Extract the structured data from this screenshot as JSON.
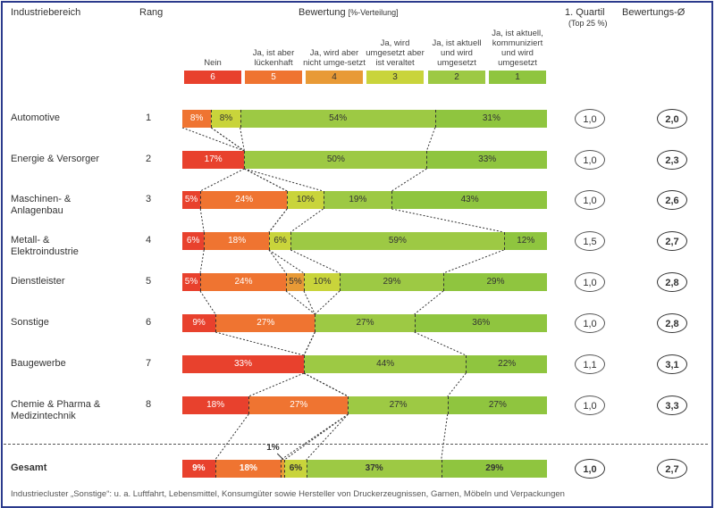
{
  "header": {
    "industry": "Industriebereich",
    "rank": "Rang",
    "rating": "Bewertung",
    "rating_unit": "[%-Verteilung]",
    "quartile": "1. Quartil",
    "quartile_sub": "(Top 25 %)",
    "avg": "Bewertungs-Ø"
  },
  "chart_data": {
    "type": "bar",
    "stacked": true,
    "orientation": "horizontal",
    "unit": "%",
    "legend": [
      {
        "score": "6",
        "label": "Nein",
        "color": "#e8412d"
      },
      {
        "score": "5",
        "label": "Ja, ist aber lückenhaft",
        "color": "#ef7431"
      },
      {
        "score": "4",
        "label": "Ja, wird aber nicht umge-setzt",
        "color": "#e89a36"
      },
      {
        "score": "3",
        "label": "Ja, wird umgesetzt aber ist veraltet",
        "color": "#c9d43b"
      },
      {
        "score": "2",
        "label": "Ja, ist aktuell und wird umgesetzt",
        "color": "#9dc944"
      },
      {
        "score": "1",
        "label": "Ja, ist aktuell, kommuniziert und wird umgesetzt",
        "color": "#8fc53f"
      }
    ],
    "rows": [
      {
        "name": "Automotive",
        "rank": "1",
        "values": [
          0,
          8,
          0,
          8,
          54,
          31
        ],
        "quartile": "1,0",
        "avg": "2,0"
      },
      {
        "name": "Energie & Versorger",
        "rank": "2",
        "values": [
          17,
          0,
          0,
          0,
          50,
          33
        ],
        "quartile": "1,0",
        "avg": "2,3"
      },
      {
        "name": "Maschinen- & Anlagenbau",
        "rank": "3",
        "values": [
          5,
          24,
          0,
          10,
          19,
          43
        ],
        "quartile": "1,0",
        "avg": "2,6"
      },
      {
        "name": "Metall- & Elektroindustrie",
        "rank": "4",
        "values": [
          6,
          18,
          0,
          6,
          59,
          12
        ],
        "quartile": "1,5",
        "avg": "2,7"
      },
      {
        "name": "Dienstleister",
        "rank": "5",
        "values": [
          5,
          24,
          5,
          10,
          29,
          29
        ],
        "quartile": "1,0",
        "avg": "2,8"
      },
      {
        "name": "Sonstige",
        "rank": "6",
        "values": [
          9,
          27,
          0,
          0,
          27,
          36
        ],
        "quartile": "1,0",
        "avg": "2,8"
      },
      {
        "name": "Baugewerbe",
        "rank": "7",
        "values": [
          33,
          0,
          0,
          0,
          44,
          22
        ],
        "quartile": "1,1",
        "avg": "3,1"
      },
      {
        "name": "Chemie & Pharma & Medizintechnik",
        "rank": "8",
        "values": [
          18,
          27,
          0,
          0,
          27,
          27
        ],
        "quartile": "1,0",
        "avg": "3,3"
      }
    ],
    "total": {
      "name": "Gesamt",
      "values": [
        9,
        18,
        1,
        6,
        37,
        29
      ],
      "quartile": "1,0",
      "avg": "2,7",
      "outside_label": "1%"
    }
  },
  "footnote": "Industriecluster „Sonstige“: u. a. Luftfahrt, Lebensmittel, Konsumgüter sowie Hersteller von Druckerzeugnissen, Garnen, Möbeln und Verpackungen"
}
